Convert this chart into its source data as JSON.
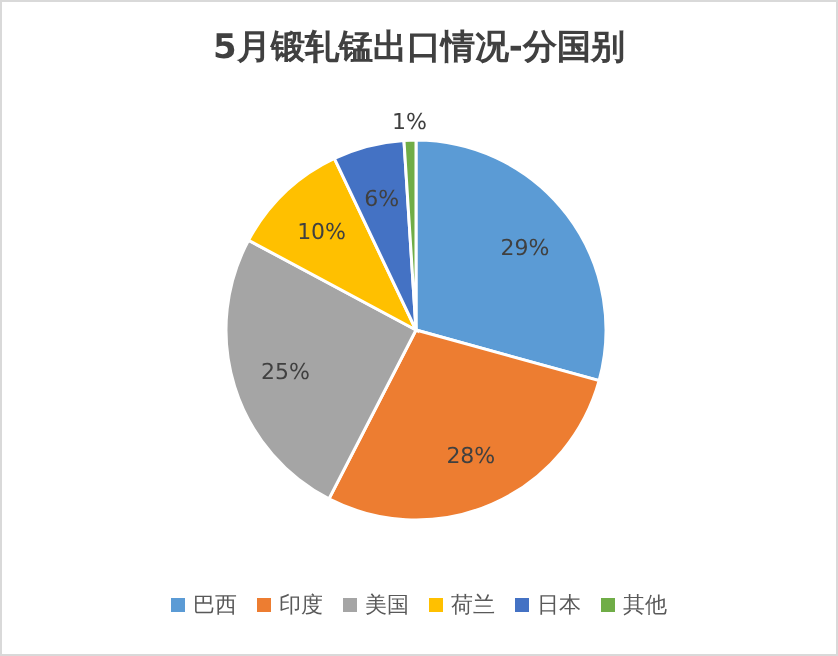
{
  "chart_data": {
    "type": "pie",
    "title": "5月锻轧锰出口情况-分国别",
    "categories": [
      "巴西",
      "印度",
      "美国",
      "荷兰",
      "日本",
      "其他"
    ],
    "values": [
      29,
      28,
      25,
      10,
      6,
      1
    ],
    "colors": [
      "#5b9bd5",
      "#ed7d31",
      "#a5a5a5",
      "#ffc000",
      "#4472c4",
      "#70ad47"
    ],
    "value_labels": [
      "29%",
      "28%",
      "25%",
      "10%",
      "6%",
      "1%"
    ],
    "legend": "bottom"
  }
}
